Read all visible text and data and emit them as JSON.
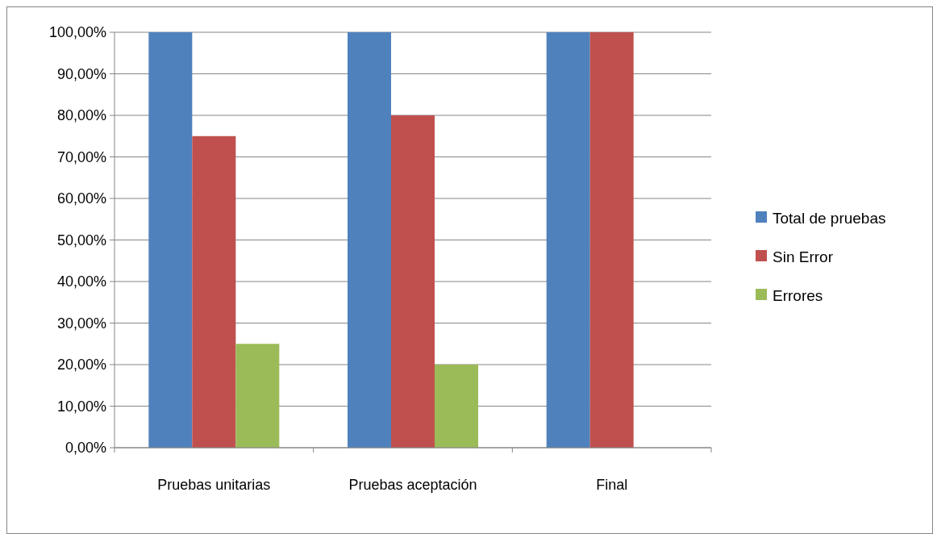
{
  "chart_data": {
    "type": "bar",
    "categories": [
      "Pruebas unitarias",
      "Pruebas aceptación",
      "Final"
    ],
    "series": [
      {
        "name": "Total de pruebas",
        "color": "#4f81bd",
        "values": [
          100,
          100,
          100
        ]
      },
      {
        "name": "Sin Error",
        "color": "#c0504d",
        "values": [
          75,
          80,
          100
        ]
      },
      {
        "name": "Errores",
        "color": "#9bbb59",
        "values": [
          25,
          20,
          0
        ]
      }
    ],
    "ylim": [
      0,
      100
    ],
    "yticks": [
      {
        "value": 0,
        "label": "0,00%"
      },
      {
        "value": 10,
        "label": "10,00%"
      },
      {
        "value": 20,
        "label": "20,00%"
      },
      {
        "value": 30,
        "label": "30,00%"
      },
      {
        "value": 40,
        "label": "40,00%"
      },
      {
        "value": 50,
        "label": "50,00%"
      },
      {
        "value": 60,
        "label": "60,00%"
      },
      {
        "value": 70,
        "label": "70,00%"
      },
      {
        "value": 80,
        "label": "80,00%"
      },
      {
        "value": 90,
        "label": "90,00%"
      },
      {
        "value": 100,
        "label": "100,00%"
      }
    ],
    "grid": "y",
    "legend": "right"
  }
}
